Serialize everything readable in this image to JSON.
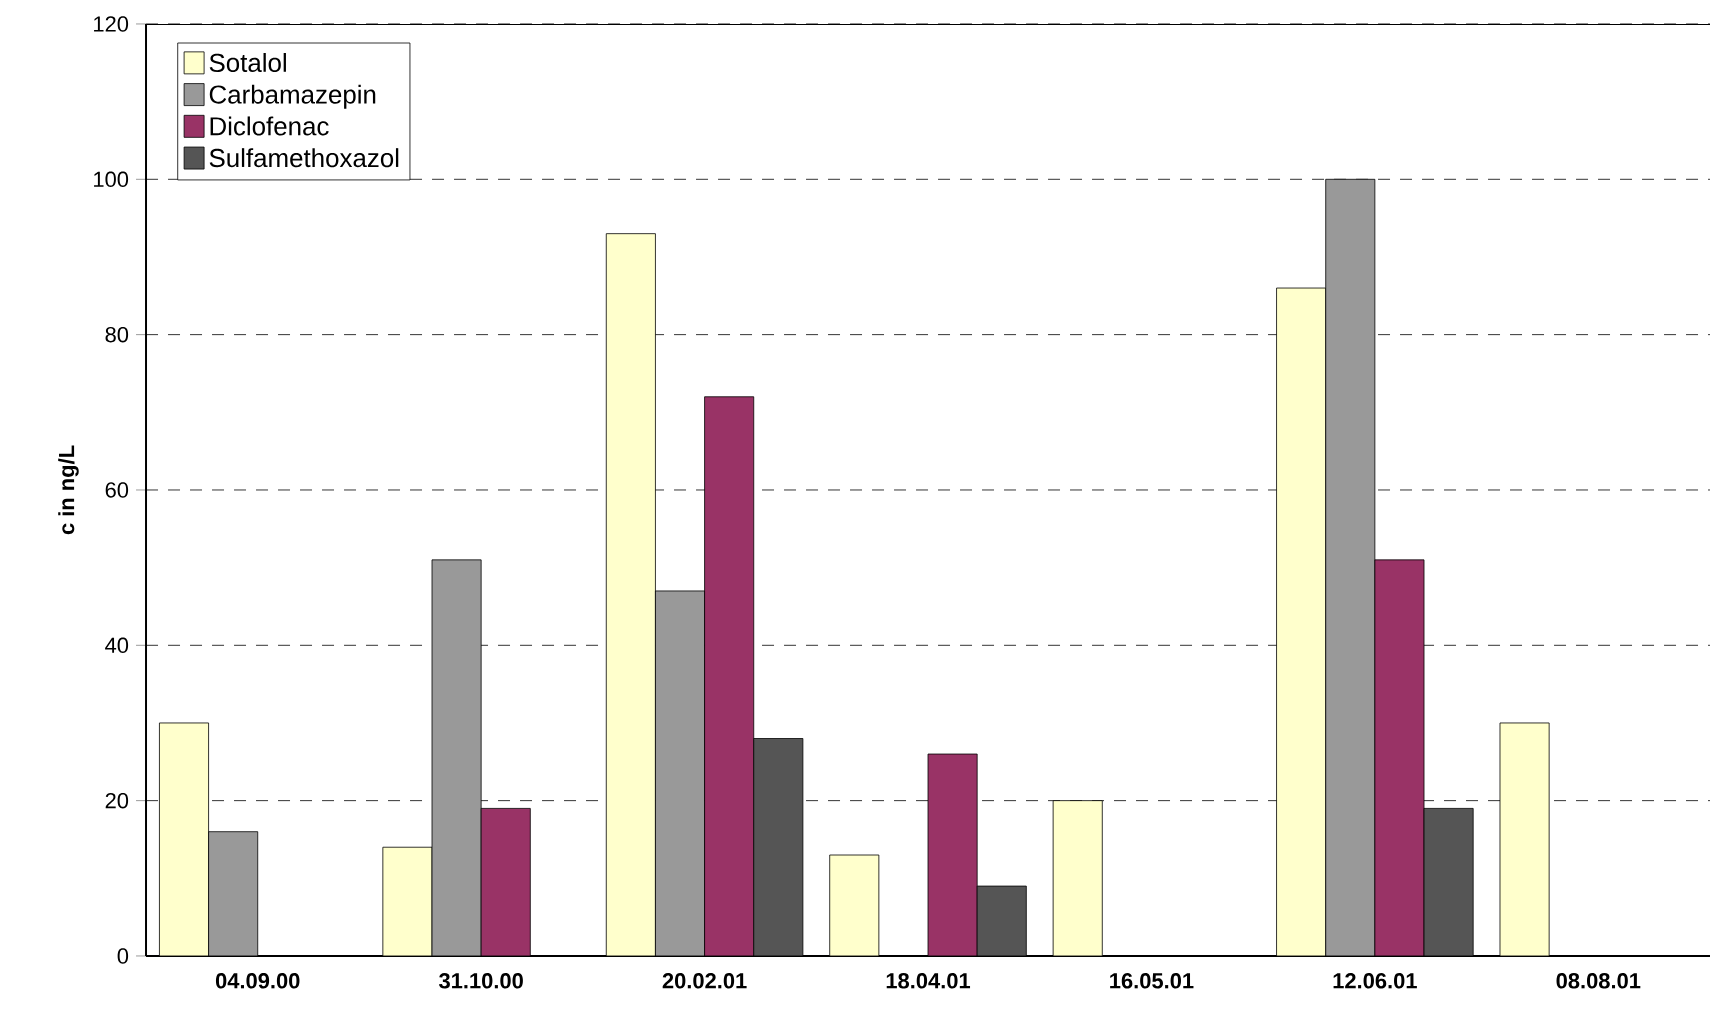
{
  "chart_data": {
    "type": "bar",
    "ylabel": "c in ng/L",
    "categories": [
      "04.09.00",
      "31.10.00",
      "20.02.01",
      "18.04.01",
      "16.05.01",
      "12.06.01",
      "08.08.01"
    ],
    "series": [
      {
        "name": "Sotalol",
        "color": "#ffffcc",
        "values": [
          30,
          14,
          93,
          13,
          20,
          86,
          30
        ]
      },
      {
        "name": "Carbamazepin",
        "color": "#999999",
        "values": [
          16,
          51,
          47,
          null,
          null,
          100,
          null
        ]
      },
      {
        "name": "Diclofenac",
        "color": "#993366",
        "values": [
          null,
          19,
          72,
          26,
          null,
          51,
          null
        ]
      },
      {
        "name": "Sulfamethoxazol",
        "color": "#555555",
        "values": [
          null,
          null,
          28,
          9,
          null,
          19,
          null
        ]
      }
    ],
    "ylim": [
      0,
      120
    ],
    "yticks": [
      0,
      20,
      40,
      60,
      80,
      100,
      120
    ],
    "grid": "y",
    "legend": "top left"
  }
}
